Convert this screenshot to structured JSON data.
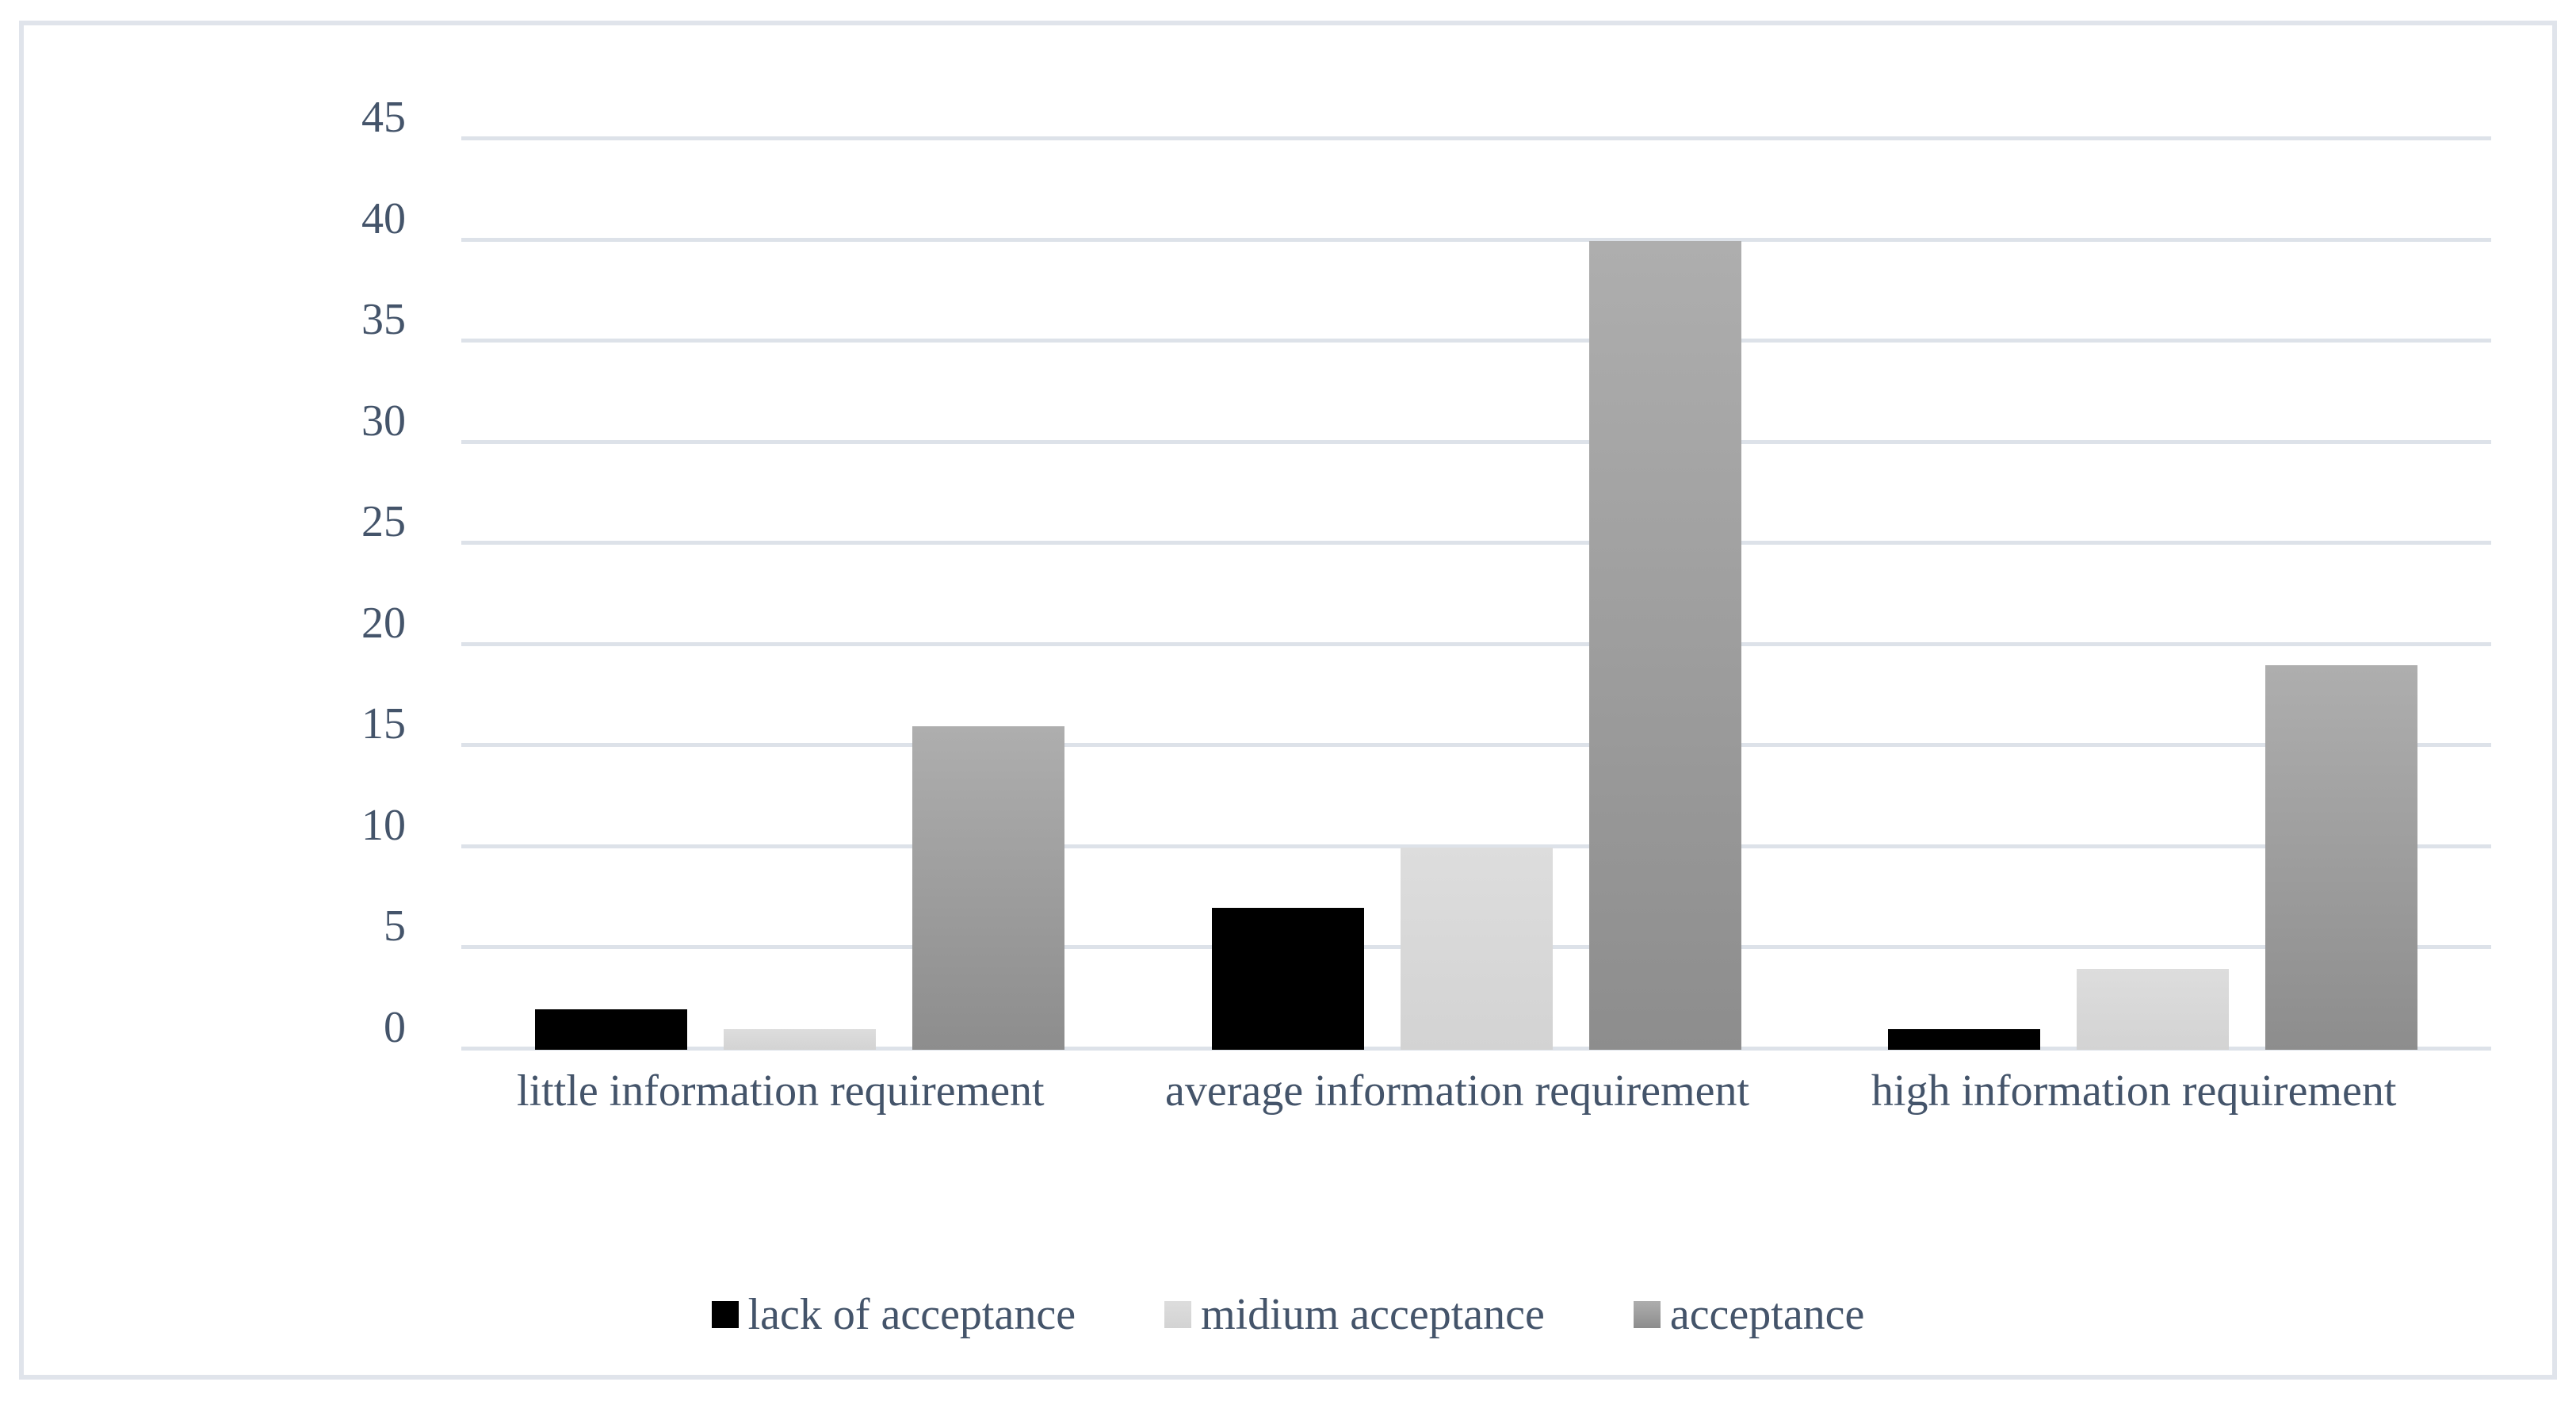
{
  "chart_data": {
    "type": "bar",
    "title": "",
    "categories": [
      "little information requirement",
      "average information requirement",
      "high information requirement"
    ],
    "series": [
      {
        "name": "lack of acceptance",
        "values": [
          2,
          7,
          1
        ],
        "color": "#000000",
        "color_top": "#000000",
        "color_bottom": "#000000"
      },
      {
        "name": "midium acceptance",
        "values": [
          1,
          10,
          4
        ],
        "color": "#d9d9d9",
        "color_top": "#dddddd",
        "color_bottom": "#d3d3d3"
      },
      {
        "name": "acceptance",
        "values": [
          16,
          40,
          19
        ],
        "color": "#9c9c9c",
        "color_top": "#aeaeae",
        "color_bottom": "#8d8d8d"
      }
    ],
    "y_axis": {
      "min": 0,
      "max": 45,
      "step": 5,
      "tick_labels": [
        "0",
        "5",
        "10",
        "15",
        "20",
        "25",
        "30",
        "35",
        "40",
        "45"
      ]
    },
    "xlabel": "",
    "ylabel": "",
    "grid": true,
    "legend_position": "bottom",
    "colors": {
      "text": "#44546a",
      "gridline": "#dde2e9",
      "frame_border": "#e0e4eb",
      "background": "#ffffff"
    }
  }
}
